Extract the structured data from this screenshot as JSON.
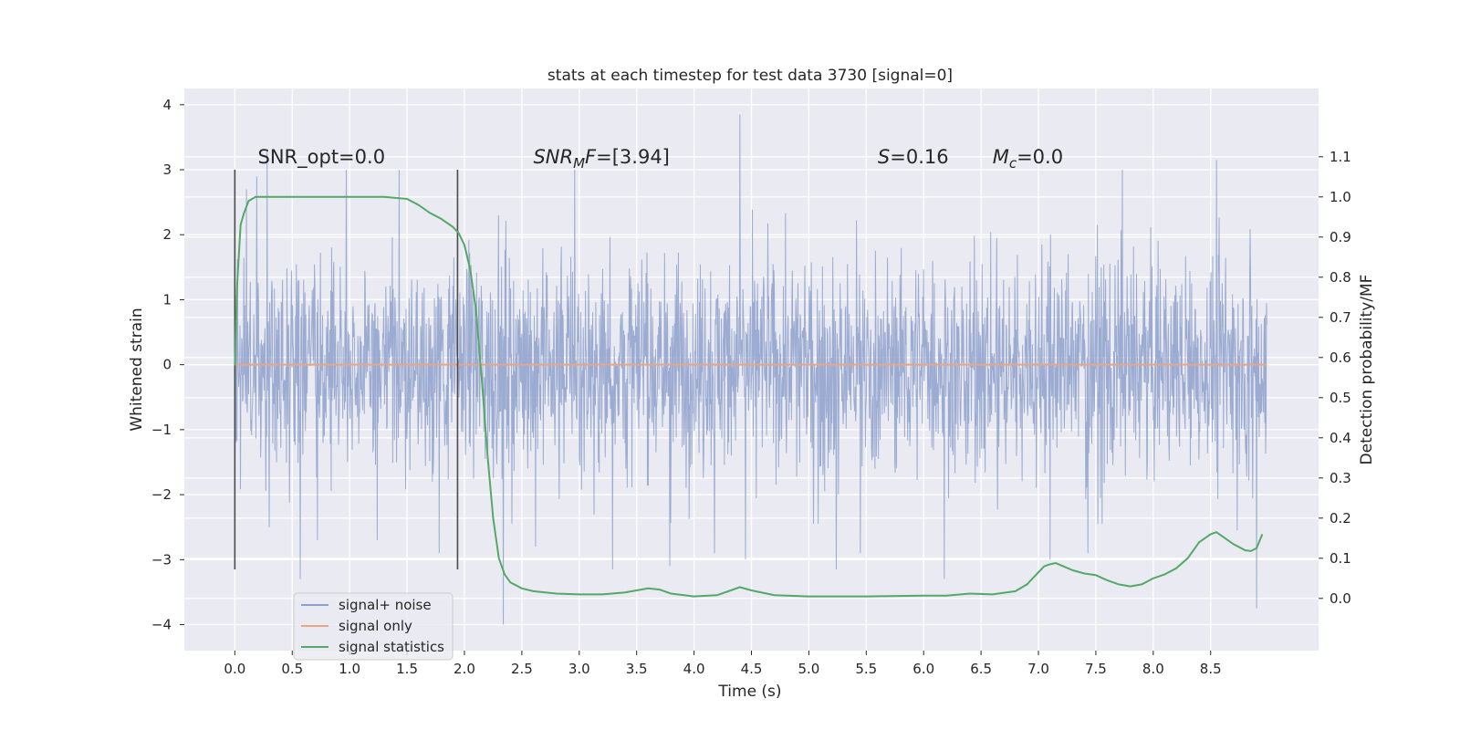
{
  "chart_data": {
    "type": "line",
    "title": "stats at each timestep for test data 3730 [signal=0]",
    "xlabel": "Time (s)",
    "ylabel": "Whitened strain",
    "y2label": "Detection probability/MF",
    "xlim": [
      -0.44,
      9.44
    ],
    "ylim": [
      -4.4,
      4.25
    ],
    "y2lim": [
      -0.13,
      1.27
    ],
    "xticks": [
      0.0,
      0.5,
      1.0,
      1.5,
      2.0,
      2.5,
      3.0,
      3.5,
      4.0,
      4.5,
      5.0,
      5.5,
      6.0,
      6.5,
      7.0,
      7.5,
      8.0,
      8.5
    ],
    "xtick_labels": [
      "0.0",
      "0.5",
      "1.0",
      "1.5",
      "2.0",
      "2.5",
      "3.0",
      "3.5",
      "4.0",
      "4.5",
      "5.0",
      "5.5",
      "6.0",
      "6.5",
      "7.0",
      "7.5",
      "8.0",
      "8.5"
    ],
    "yticks": [
      4,
      3,
      2,
      1,
      0,
      -1,
      -2,
      -3,
      -4
    ],
    "ytick_labels": [
      "4",
      "3",
      "2",
      "1",
      "0",
      "−1",
      "−2",
      "−3",
      "−4"
    ],
    "y2ticks": [
      1.1,
      1.0,
      0.9,
      0.8,
      0.7,
      0.6,
      0.5,
      0.4,
      0.3,
      0.2,
      0.1,
      0.0
    ],
    "y2tick_labels": [
      "1.1",
      "1.0",
      "0.9",
      "0.8",
      "0.7",
      "0.6",
      "0.5",
      "0.4",
      "0.3",
      "0.2",
      "0.1",
      "0.0"
    ],
    "grid": true,
    "vlines": [
      {
        "x": 0.0,
        "ymin": -3.15,
        "ymax": 3.0
      },
      {
        "x": 1.94,
        "ymin": -3.15,
        "ymax": 3.0
      }
    ],
    "annotations": [
      {
        "name": "snr-opt",
        "x": 0.2,
        "text": "SNR_opt=0.0"
      },
      {
        "name": "snr-mf",
        "x": 2.6,
        "text": "=[3.94]",
        "math": "SNR",
        "sub": "M",
        "tail": "F"
      },
      {
        "name": "s-value",
        "x": 5.6,
        "text": "=0.16",
        "math": "S"
      },
      {
        "name": "mc-value",
        "x": 6.6,
        "text": "=0.0",
        "math": "M",
        "sub": "c"
      }
    ],
    "annotation_y": 3.1,
    "legend": {
      "position": "lower-left",
      "entries": [
        "signal+ noise",
        "signal only",
        "signal statistics"
      ]
    },
    "series": [
      {
        "name": "signal+ noise",
        "color": "#8da0cb",
        "x_range": [
          0.0,
          8.99
        ],
        "points": 2400,
        "envelope_typical": [
          -1.5,
          1.5
        ],
        "peaks": [
          {
            "x": 0.1,
            "y": 2.7
          },
          {
            "x": 0.19,
            "y": 2.9
          },
          {
            "x": 0.28,
            "y": 3.3
          },
          {
            "x": 0.3,
            "y": -2.5
          },
          {
            "x": 0.57,
            "y": -3.3
          },
          {
            "x": 0.72,
            "y": -2.7
          },
          {
            "x": 0.97,
            "y": 3.0
          },
          {
            "x": 1.24,
            "y": -2.7
          },
          {
            "x": 1.43,
            "y": 3.0
          },
          {
            "x": 1.78,
            "y": -2.9
          },
          {
            "x": 2.34,
            "y": -4.0
          },
          {
            "x": 2.62,
            "y": -2.8
          },
          {
            "x": 2.96,
            "y": 3.0
          },
          {
            "x": 3.29,
            "y": -3.15
          },
          {
            "x": 3.79,
            "y": -3.1
          },
          {
            "x": 4.18,
            "y": -2.9
          },
          {
            "x": 4.4,
            "y": 3.85
          },
          {
            "x": 4.45,
            "y": -3.0
          },
          {
            "x": 5.24,
            "y": -3.15
          },
          {
            "x": 5.45,
            "y": -2.9
          },
          {
            "x": 6.18,
            "y": -3.3
          },
          {
            "x": 7.1,
            "y": -3.0
          },
          {
            "x": 7.43,
            "y": -2.9
          },
          {
            "x": 7.73,
            "y": 3.0
          },
          {
            "x": 8.55,
            "y": 3.15
          },
          {
            "x": 8.73,
            "y": -2.55
          },
          {
            "x": 8.9,
            "y": -3.75
          }
        ]
      },
      {
        "name": "signal only",
        "color": "#e5a689",
        "x": [
          0.0,
          8.99
        ],
        "y": [
          0.0,
          0.0
        ]
      },
      {
        "name": "signal statistics",
        "color": "#55a868",
        "axis": "right",
        "x": [
          0.0,
          0.02,
          0.05,
          0.08,
          0.12,
          0.18,
          0.25,
          0.35,
          0.5,
          0.8,
          1.0,
          1.3,
          1.5,
          1.6,
          1.7,
          1.8,
          1.9,
          1.95,
          2.0,
          2.05,
          2.1,
          2.15,
          2.2,
          2.25,
          2.3,
          2.35,
          2.4,
          2.5,
          2.6,
          2.8,
          3.0,
          3.2,
          3.4,
          3.6,
          3.7,
          3.8,
          4.0,
          4.2,
          4.3,
          4.4,
          4.5,
          4.7,
          5.0,
          5.5,
          6.0,
          6.2,
          6.4,
          6.6,
          6.8,
          6.9,
          7.0,
          7.05,
          7.1,
          7.15,
          7.2,
          7.3,
          7.4,
          7.5,
          7.6,
          7.7,
          7.8,
          7.9,
          8.0,
          8.1,
          8.2,
          8.3,
          8.4,
          8.5,
          8.55,
          8.6,
          8.7,
          8.8,
          8.85,
          8.9,
          8.95
        ],
        "y": [
          0.58,
          0.78,
          0.93,
          0.96,
          0.99,
          1.0,
          1.0,
          1.0,
          1.0,
          1.0,
          1.0,
          1.0,
          0.995,
          0.98,
          0.96,
          0.945,
          0.925,
          0.91,
          0.88,
          0.82,
          0.72,
          0.55,
          0.36,
          0.2,
          0.1,
          0.06,
          0.04,
          0.025,
          0.018,
          0.012,
          0.01,
          0.01,
          0.015,
          0.025,
          0.022,
          0.012,
          0.005,
          0.008,
          0.018,
          0.028,
          0.02,
          0.008,
          0.005,
          0.005,
          0.007,
          0.007,
          0.012,
          0.01,
          0.018,
          0.035,
          0.065,
          0.08,
          0.085,
          0.088,
          0.082,
          0.07,
          0.062,
          0.058,
          0.045,
          0.035,
          0.03,
          0.035,
          0.05,
          0.06,
          0.075,
          0.1,
          0.14,
          0.16,
          0.165,
          0.155,
          0.135,
          0.12,
          0.118,
          0.125,
          0.16
        ]
      }
    ]
  }
}
